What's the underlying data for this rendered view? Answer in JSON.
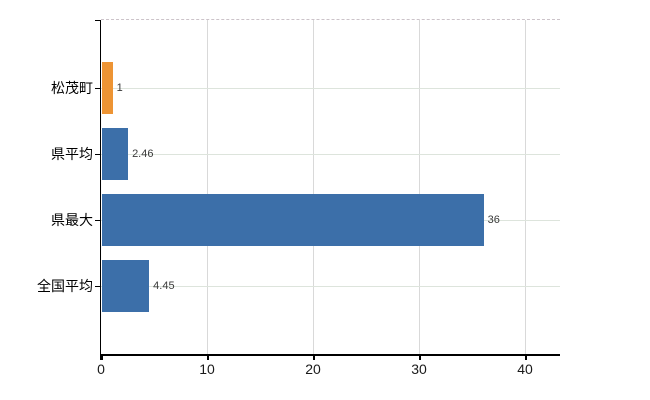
{
  "chart_data": {
    "type": "bar",
    "orientation": "horizontal",
    "title": "",
    "xlabel": "",
    "ylabel": "",
    "categories": [
      "松茂町",
      "県平均",
      "県最大",
      "全国平均"
    ],
    "values": [
      1,
      2.46,
      36,
      4.45
    ],
    "value_labels": [
      "1",
      "2.46",
      "36",
      "4.45"
    ],
    "bar_colors": [
      "#ed9434",
      "#3c6fa9",
      "#3c6fa9",
      "#3c6fa9"
    ],
    "x_ticks": [
      0,
      10,
      20,
      30,
      40
    ],
    "x_tick_labels": [
      "0",
      "10",
      "20",
      "30",
      "40"
    ],
    "xlim": [
      0,
      43.3
    ],
    "grid": true,
    "legend_position": "none"
  },
  "colors": {
    "bar_blue": "#3c6fa9",
    "bar_orange": "#ed9434",
    "axis": "#000000",
    "gridline_vertical": "#d9d9d9",
    "gridline_horizontal": "#dde4dc",
    "top_border_dashed": "#ccc3c9",
    "background": "#ffffff"
  }
}
